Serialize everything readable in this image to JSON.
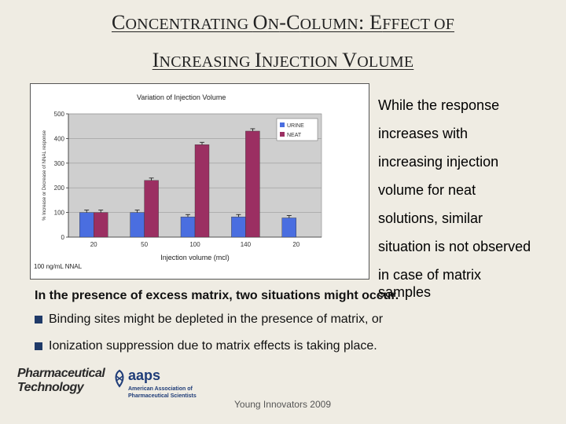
{
  "slide": {
    "title_line1": [
      {
        "cap": "C",
        "rest": "ONCENTRATING "
      },
      {
        "cap": "O",
        "rest": "N"
      },
      {
        "cap": "-C",
        "rest": "OLUMN"
      },
      {
        "cap": ": E",
        "rest": "FFECT OF"
      }
    ],
    "title_line2": [
      {
        "cap": "I",
        "rest": "NCREASING "
      },
      {
        "cap": "I",
        "rest": "NJECTION "
      },
      {
        "cap": "V",
        "rest": "OLUME"
      }
    ],
    "side_lines": [
      "While the response",
      "increases with",
      "increasing injection",
      "volume for neat",
      "solutions, similar",
      "situation is not observed",
      "in case of matrix",
      "samples"
    ],
    "bold_statement": "In the presence of excess matrix, two situations might occur.",
    "bullets": [
      "Binding sites might be depleted in the presence of matrix, or",
      "Ionization suppression due to matrix effects is taking place."
    ],
    "footer": "Young Innovators 2009",
    "logo_pt": {
      "line1": "Pharmaceutical",
      "line2": "Technology"
    },
    "logo_aaps": {
      "word": "aaps",
      "sub1": "American Association of",
      "sub2": "Pharmaceutical Scientists"
    },
    "chart_footnote": "100 ng/mL NNAL",
    "colors": {
      "urine": "#4a6ee0",
      "neat": "#9b2f62",
      "plot_bg": "#cfcfcf",
      "bullet": "#1f3a68"
    }
  },
  "chart_data": {
    "type": "bar",
    "title": "Variation of Injection Volume",
    "xlabel": "Injection volume (mcl)",
    "ylabel": "% Increase or Decrease of NNAL response",
    "categories": [
      "20",
      "50",
      "100",
      "140",
      "20"
    ],
    "yticks": [
      0,
      100,
      200,
      300,
      400,
      500
    ],
    "ylim": [
      0,
      500
    ],
    "legend_position": "top-right",
    "series": [
      {
        "name": "URINE",
        "values": [
          100,
          100,
          82,
          82,
          78
        ]
      },
      {
        "name": "NEAT",
        "values": [
          100,
          230,
          375,
          430,
          null
        ]
      }
    ]
  }
}
